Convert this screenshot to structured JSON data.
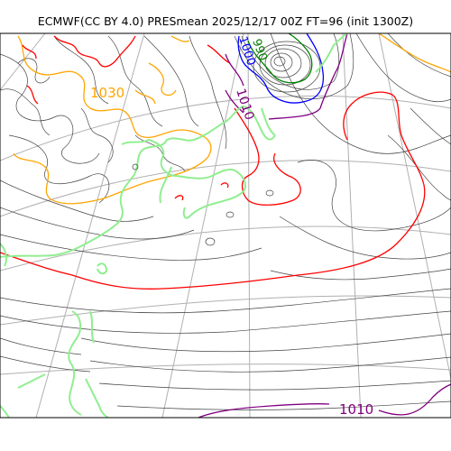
{
  "title": "ECMWF(CC BY 4.0) PRESmean 2025/12/17 00Z FT=96 (init 1300Z)",
  "contour_labels": {
    "high_orange": "1030",
    "purple_north": "1010",
    "blue_low": "1000",
    "green_low": "990",
    "purple_south": "1010"
  },
  "colors": {
    "coast": "#90ee90",
    "grid": "#b0b0b0",
    "isobar_thin": "#444444",
    "red": "#ff0000",
    "orange": "#ffa500",
    "purple": "#800080",
    "blue": "#0000ff",
    "green": "#008000"
  }
}
